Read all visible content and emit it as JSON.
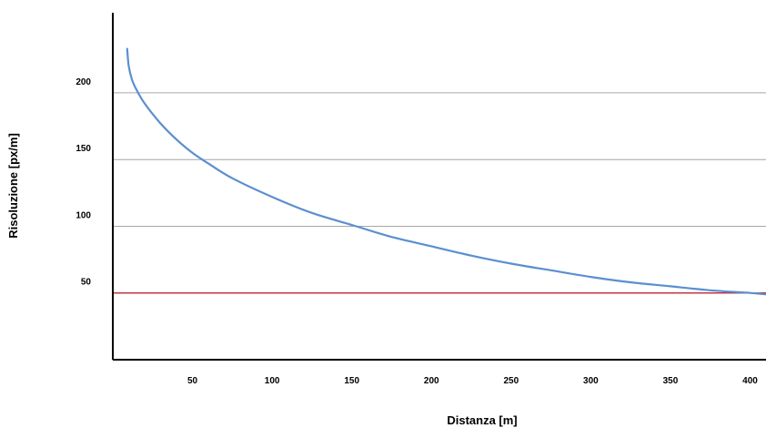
{
  "chart_data": {
    "type": "line",
    "xlabel": "Distanza [m]",
    "ylabel": "Risoluzione [px/m]",
    "x_ticks": [
      50,
      100,
      150,
      200,
      250,
      300,
      350,
      400
    ],
    "y_ticks": [
      50,
      100,
      150,
      200
    ],
    "xlim": [
      0,
      410
    ],
    "ylim": [
      0,
      260
    ],
    "grid": "horizontal",
    "series": [
      {
        "color": "#5b8fd0",
        "x": [
          9,
          10,
          12,
          15,
          20,
          30,
          40,
          50,
          60,
          75,
          100,
          125,
          150,
          175,
          200,
          225,
          250,
          275,
          300,
          325,
          350,
          375,
          400,
          410
        ],
        "y": [
          233,
          220,
          210,
          202,
          192,
          177,
          165,
          155,
          147,
          136,
          122,
          110,
          101,
          92,
          85,
          78,
          72,
          67,
          62,
          58,
          55,
          52,
          50,
          49
        ]
      }
    ],
    "reference_line": {
      "y": 50,
      "color": "#c0182a"
    }
  }
}
